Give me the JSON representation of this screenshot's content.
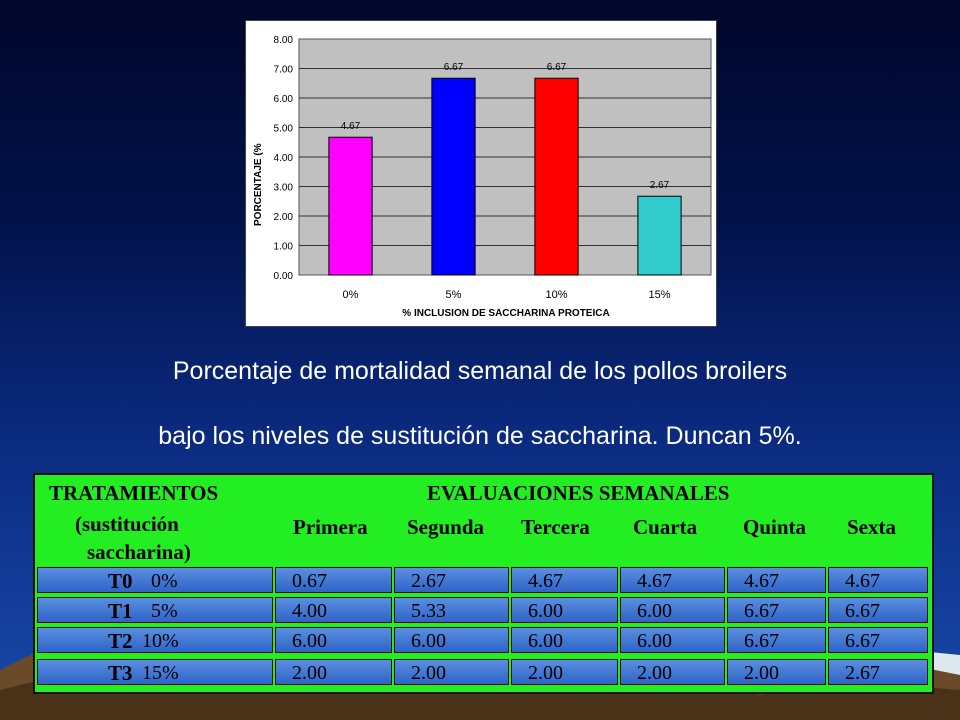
{
  "chart_data": {
    "type": "bar",
    "categories": [
      "0%",
      "5%",
      "10%",
      "15%"
    ],
    "values": [
      4.67,
      6.67,
      6.67,
      2.67
    ],
    "data_labels": [
      "4.67",
      "6.67",
      "6.67",
      "2.67"
    ],
    "colors": [
      "#ff00ff",
      "#0000ff",
      "#ff0000",
      "#33cccc"
    ],
    "ylabel": "PORCENTAJE (%",
    "xlabel": "% INCLUSION DE SACCHARINA PROTEICA",
    "ylim": [
      0,
      8
    ],
    "yticks": [
      "0.00",
      "1.00",
      "2.00",
      "3.00",
      "4.00",
      "5.00",
      "6.00",
      "7.00",
      "8.00"
    ],
    "plot_background": "#c0c0c0",
    "grid": true
  },
  "caption": {
    "line1": "Porcentaje de mortalidad  semanal de los pollos broilers",
    "line2": "bajo los niveles de sustitución de saccharina. Duncan 5%."
  },
  "table": {
    "header_treatments": "TRATAMIENTOS",
    "header_sub1": "(sustitución",
    "header_sub2": "saccharina)",
    "header_evaluations": "EVALUACIONES SEMANALES",
    "columns": [
      "Primera",
      "Segunda",
      "Tercera",
      "Cuarta",
      "Quinta",
      "Sexta"
    ],
    "rows": [
      {
        "code": "T0",
        "level": "0%",
        "values": [
          "0.67",
          "2.67",
          "4.67",
          "4.67",
          "4.67",
          "4.67"
        ]
      },
      {
        "code": "T1",
        "level": "5%",
        "values": [
          "4.00",
          "5.33",
          "6.00",
          "6.00",
          "6.67",
          "6.67"
        ]
      },
      {
        "code": "T2",
        "level": "10%",
        "values": [
          "6.00",
          "6.00",
          "6.00",
          "6.00",
          "6.67",
          "6.67"
        ]
      },
      {
        "code": "T3",
        "level": "15%",
        "values": [
          "2.00",
          "2.00",
          "2.00",
          "2.00",
          "2.00",
          "2.67"
        ]
      }
    ]
  }
}
